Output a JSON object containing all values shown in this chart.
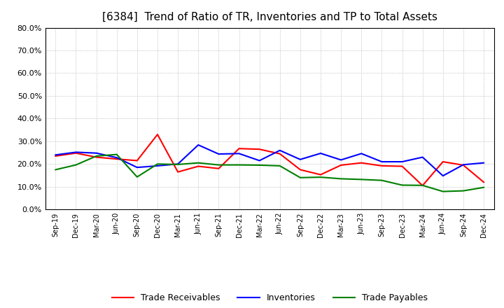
{
  "title": "[6384]  Trend of Ratio of TR, Inventories and TP to Total Assets",
  "x_labels": [
    "Sep-19",
    "Dec-19",
    "Mar-20",
    "Jun-20",
    "Sep-20",
    "Dec-20",
    "Mar-21",
    "Jun-21",
    "Sep-21",
    "Dec-21",
    "Mar-22",
    "Jun-22",
    "Sep-22",
    "Dec-22",
    "Mar-23",
    "Jun-23",
    "Sep-23",
    "Dec-23",
    "Mar-24",
    "Jun-24",
    "Sep-24",
    "Dec-24"
  ],
  "trade_receivables": [
    0.235,
    0.248,
    0.23,
    0.222,
    0.215,
    0.33,
    0.165,
    0.19,
    0.18,
    0.268,
    0.265,
    0.245,
    0.175,
    0.153,
    0.195,
    0.205,
    0.192,
    0.19,
    0.105,
    0.21,
    0.195,
    0.12
  ],
  "inventories": [
    0.24,
    0.252,
    0.248,
    0.228,
    0.185,
    0.192,
    0.2,
    0.284,
    0.244,
    0.246,
    0.215,
    0.26,
    0.22,
    0.247,
    0.218,
    0.246,
    0.21,
    0.21,
    0.23,
    0.148,
    0.197,
    0.205
  ],
  "trade_payables": [
    0.175,
    0.196,
    0.235,
    0.242,
    0.143,
    0.2,
    0.198,
    0.205,
    0.196,
    0.196,
    0.195,
    0.192,
    0.14,
    0.142,
    0.135,
    0.132,
    0.128,
    0.107,
    0.106,
    0.079,
    0.082,
    0.097
  ],
  "ylim": [
    0.0,
    0.8
  ],
  "yticks": [
    0.0,
    0.1,
    0.2,
    0.3,
    0.4,
    0.5,
    0.6,
    0.7,
    0.8
  ],
  "tr_color": "#ff0000",
  "inv_color": "#0000ff",
  "tp_color": "#008000",
  "bg_color": "#ffffff",
  "plot_bg_color": "#ffffff",
  "grid_color": "#b0b0b0",
  "title_fontsize": 11,
  "legend_labels": [
    "Trade Receivables",
    "Inventories",
    "Trade Payables"
  ]
}
